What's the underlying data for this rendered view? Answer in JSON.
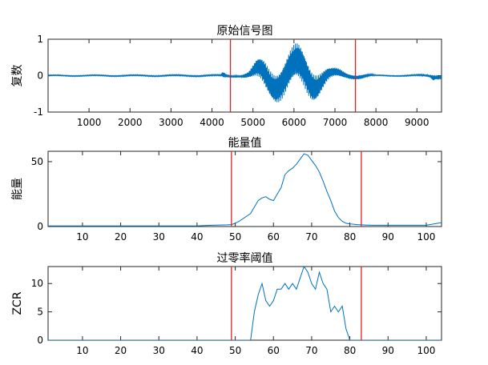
{
  "colors": {
    "series": "#0072BD",
    "marker": "#E02020",
    "axes": "#262626"
  },
  "chart_data": [
    {
      "type": "line",
      "title": "原始信号图",
      "xlabel": "",
      "ylabel": "复数",
      "xlim": [
        1,
        9600
      ],
      "ylim": [
        -1,
        1
      ],
      "xticks": [
        1000,
        2000,
        3000,
        4000,
        5000,
        6000,
        7000,
        8000,
        9000
      ],
      "yticks": [
        -1,
        0,
        1
      ],
      "vlines": [
        4450,
        7500
      ],
      "series": [
        {
          "style": "waveform",
          "envelope_x": [
            0,
            4200,
            4280,
            4350,
            4500,
            4700,
            4900,
            5100,
            5300,
            5500,
            5700,
            5900,
            6100,
            6300,
            6500,
            6700,
            6900,
            7100,
            7300,
            7500,
            7700,
            8000,
            8500,
            9000,
            9300,
            9400,
            9450,
            9600
          ],
          "envelope_y": [
            0.02,
            0.03,
            0.15,
            0.08,
            0.05,
            0.05,
            0.15,
            0.45,
            0.65,
            0.7,
            0.8,
            0.85,
            0.9,
            0.85,
            0.7,
            0.45,
            0.25,
            0.2,
            0.12,
            0.1,
            0.1,
            0.02,
            0.02,
            0.03,
            0.05,
            0.15,
            0.1,
            0.1
          ]
        }
      ]
    },
    {
      "type": "line",
      "title": "能量值",
      "xlabel": "",
      "ylabel": "能量",
      "xlim": [
        1,
        104
      ],
      "ylim": [
        0,
        58
      ],
      "xticks": [
        10,
        20,
        30,
        40,
        50,
        60,
        70,
        80,
        90,
        100
      ],
      "yticks": [
        0,
        50
      ],
      "vlines": [
        49,
        83
      ],
      "series": [
        {
          "x": [
            1,
            5,
            10,
            15,
            20,
            25,
            30,
            35,
            40,
            42,
            44,
            46,
            48,
            49,
            50,
            51,
            52,
            53,
            54,
            55,
            56,
            57,
            58,
            59,
            60,
            61,
            62,
            63,
            64,
            65,
            66,
            67,
            68,
            69,
            70,
            71,
            72,
            73,
            74,
            75,
            76,
            77,
            78,
            79,
            80,
            81,
            82,
            83,
            84,
            86,
            88,
            90,
            92,
            94,
            96,
            98,
            100,
            102,
            104
          ],
          "values": [
            0.5,
            0.5,
            0.5,
            0.5,
            0.5,
            0.5,
            0.5,
            0.5,
            0.5,
            0.8,
            1.0,
            1.2,
            1.3,
            1.5,
            2.5,
            4,
            6,
            8,
            10,
            15,
            20,
            22,
            23,
            21,
            20,
            25,
            30,
            40,
            43,
            45,
            48,
            52,
            56,
            55,
            51,
            47,
            42,
            35,
            27,
            20,
            12,
            7,
            4,
            2.5,
            2,
            1.8,
            1.5,
            1.3,
            1.2,
            1,
            1,
            1,
            1,
            1,
            1,
            1,
            1,
            2,
            3
          ]
        }
      ]
    },
    {
      "type": "line",
      "title": "过零率阈值",
      "xlabel": "",
      "ylabel": "ZCR",
      "xlim": [
        1,
        104
      ],
      "ylim": [
        0,
        13
      ],
      "xticks": [
        10,
        20,
        30,
        40,
        50,
        60,
        70,
        80,
        90,
        100
      ],
      "yticks": [
        0,
        5,
        10
      ],
      "vlines": [
        49,
        83
      ],
      "series": [
        {
          "x": [
            1,
            10,
            20,
            30,
            40,
            50,
            53,
            54,
            55,
            56,
            57,
            58,
            59,
            60,
            61,
            62,
            63,
            64,
            65,
            66,
            67,
            68,
            69,
            70,
            71,
            72,
            73,
            74,
            75,
            76,
            77,
            78,
            79,
            80,
            81,
            82,
            84,
            90,
            100,
            104
          ],
          "values": [
            0,
            0,
            0,
            0,
            0,
            0,
            0,
            0,
            5,
            8,
            10,
            7,
            6,
            7,
            9,
            9,
            10,
            9,
            10,
            9,
            11,
            13,
            12,
            10,
            9,
            12,
            10,
            9,
            5,
            6,
            5,
            6,
            2,
            0,
            0,
            0,
            0,
            0,
            0,
            0
          ]
        }
      ]
    }
  ]
}
